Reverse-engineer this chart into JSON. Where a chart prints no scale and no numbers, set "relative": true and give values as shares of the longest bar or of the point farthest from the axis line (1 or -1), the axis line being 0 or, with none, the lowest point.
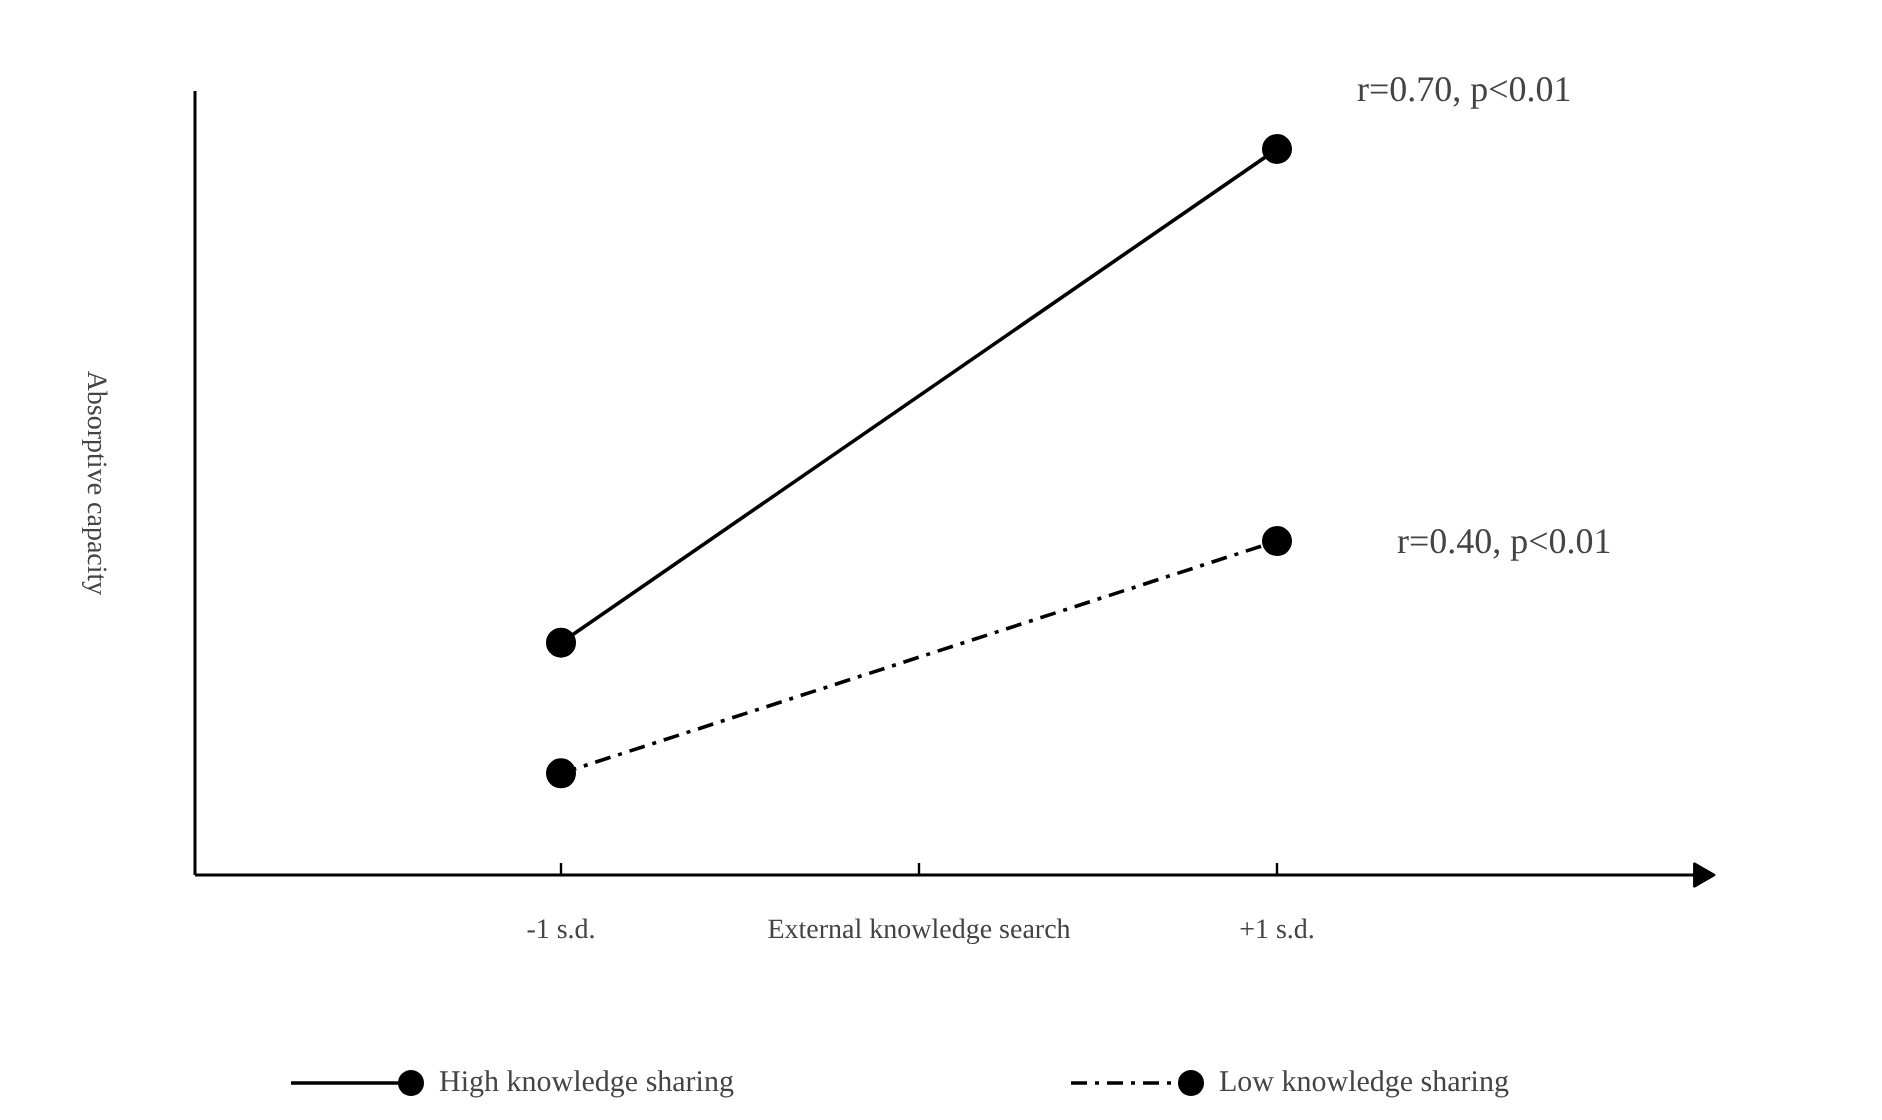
{
  "chart_data": {
    "type": "line",
    "relative": true,
    "xlabel": "External knowledge search",
    "ylabel": "Absorptive capacity",
    "categories": [
      "-1 s.d.",
      null,
      "+1 s.d."
    ],
    "series": [
      {
        "name": "High knowledge sharing",
        "color": "#000000",
        "values": [
          0.32,
          null,
          1
        ],
        "line_style": "solid"
      },
      {
        "name": "Low knowledge sharing",
        "color": "#000000",
        "values": [
          0.14,
          null,
          0.46
        ],
        "line_style": "dashdot"
      }
    ],
    "marker": "circle",
    "legend": "bottom",
    "grid": false,
    "annotations": [
      "r=0.70, p<0.01",
      "r=0.40, p<0.01"
    ]
  }
}
